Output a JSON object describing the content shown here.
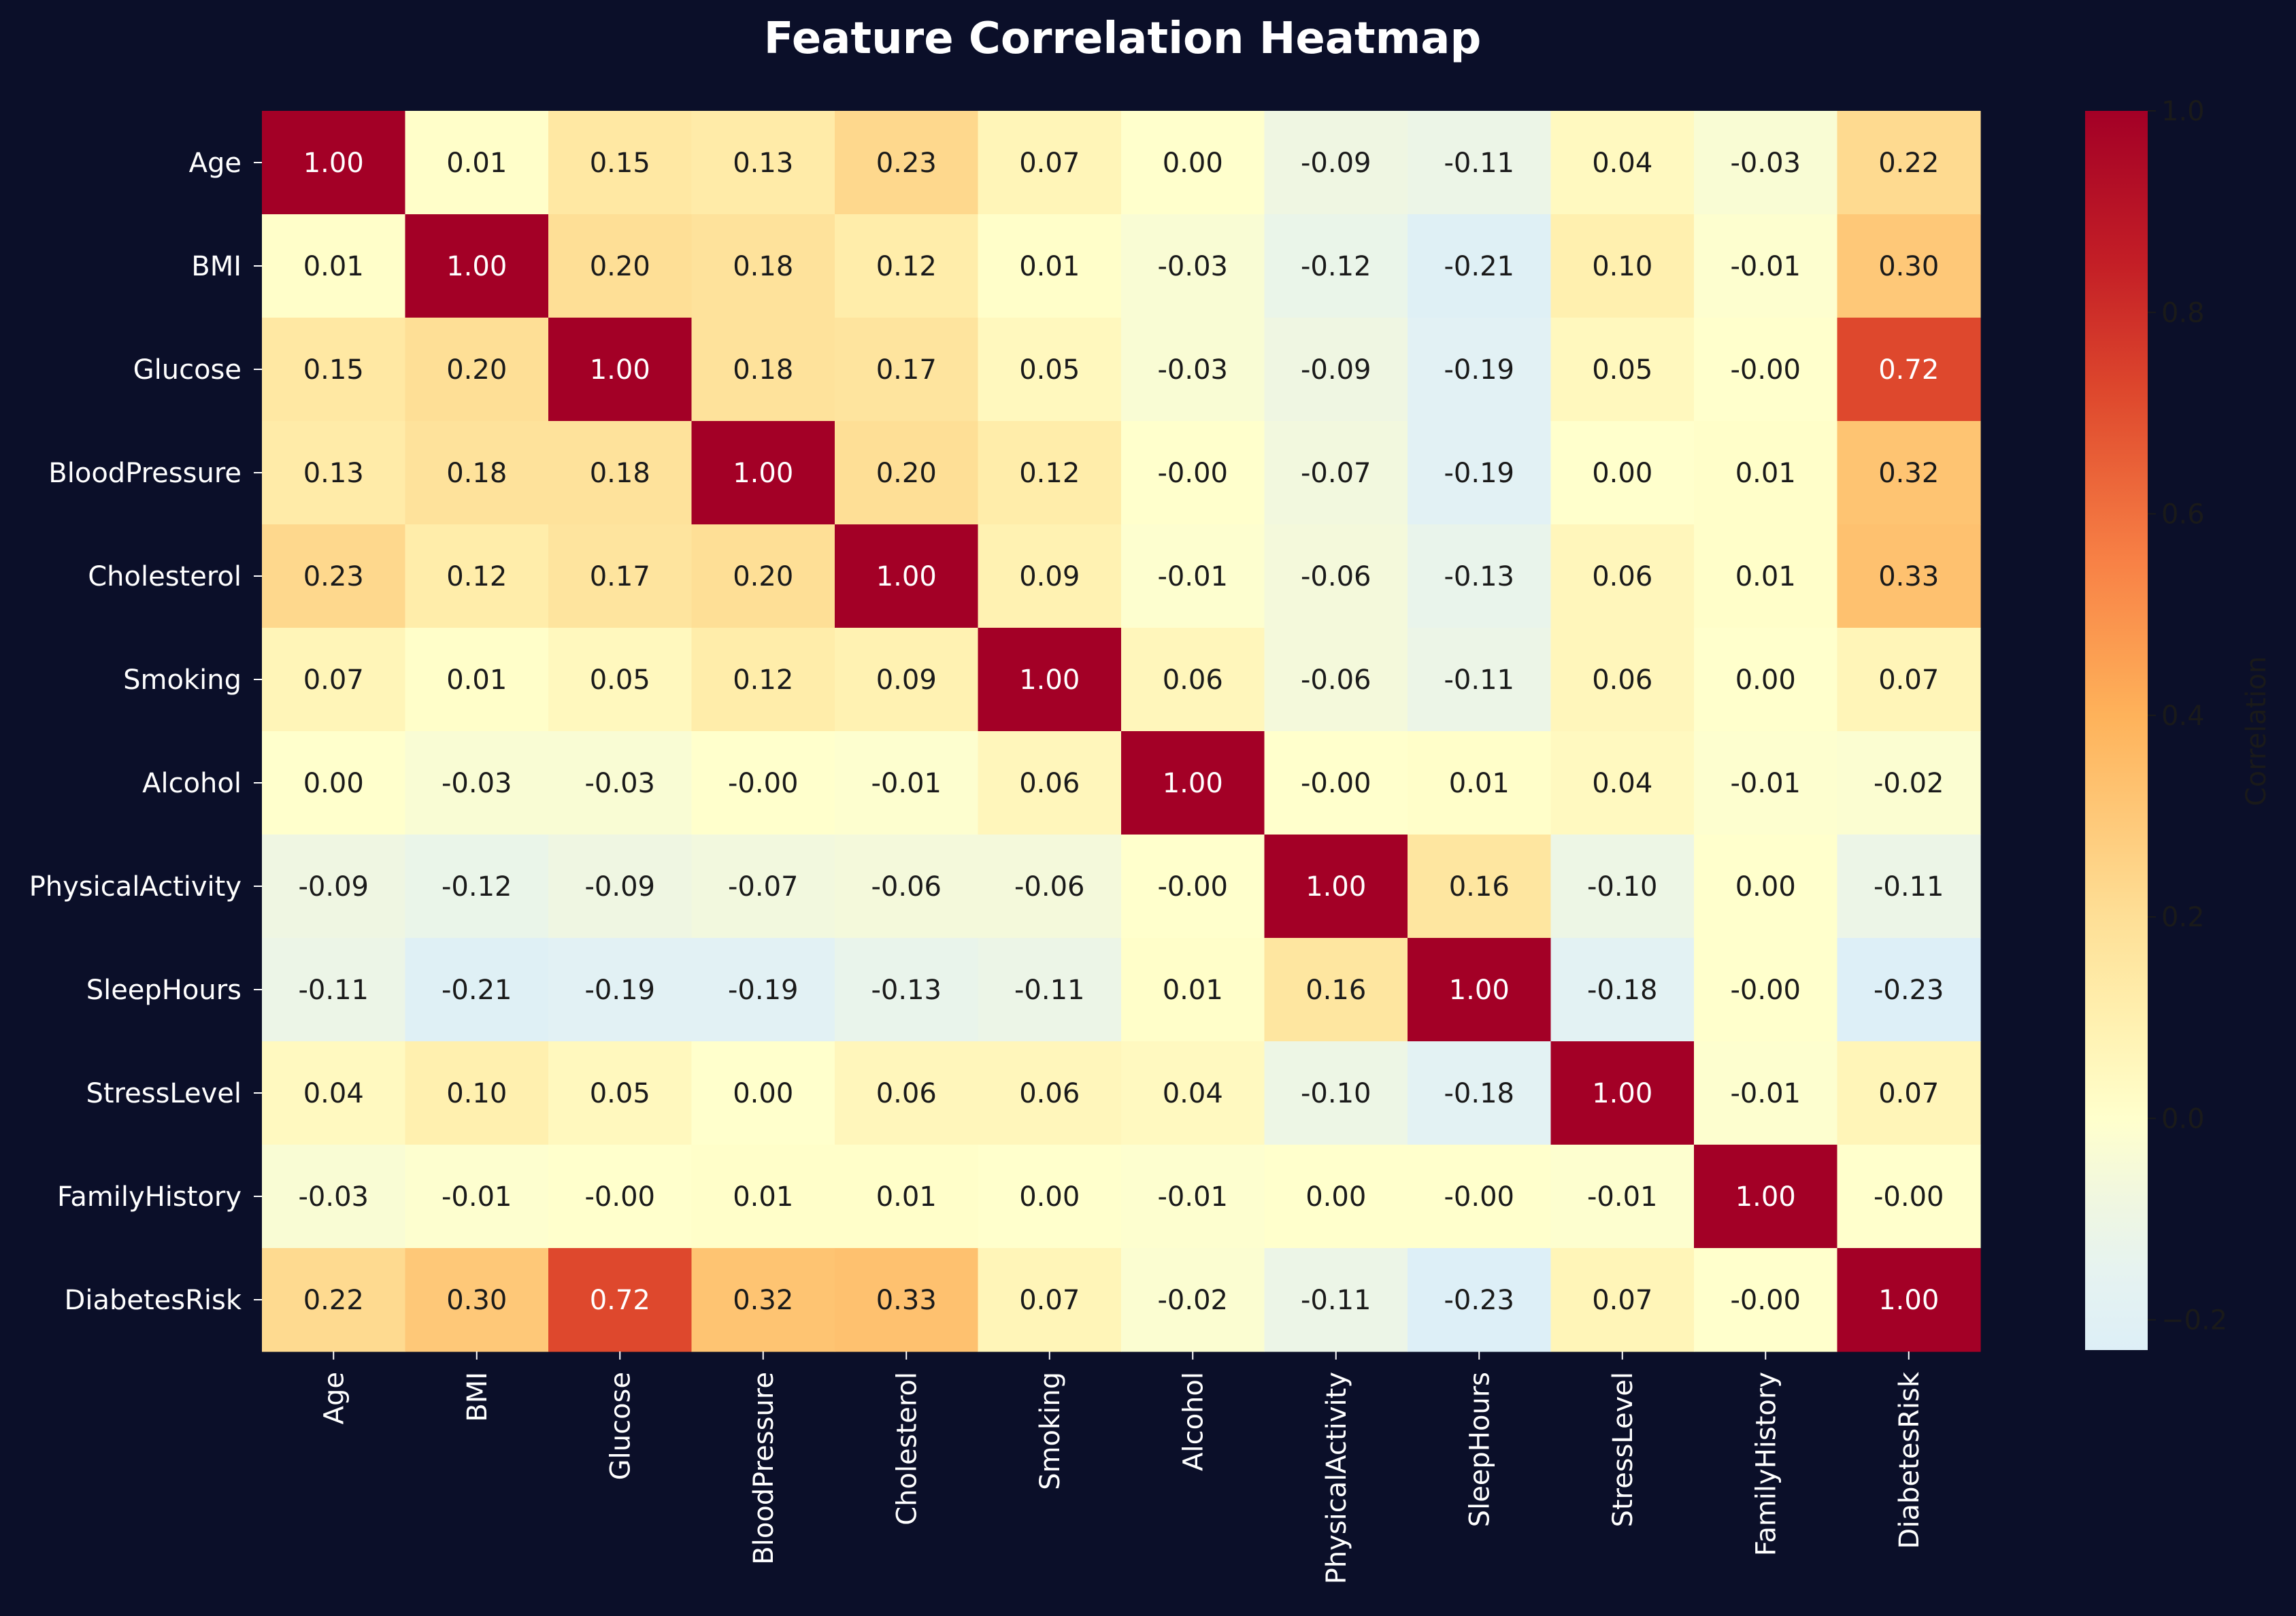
{
  "chart_data": {
    "type": "heatmap",
    "title": "Feature Correlation Heatmap",
    "row_labels": [
      "Age",
      "BMI",
      "Glucose",
      "BloodPressure",
      "Cholesterol",
      "Smoking",
      "Alcohol",
      "PhysicalActivity",
      "SleepHours",
      "StressLevel",
      "FamilyHistory",
      "DiabetesRisk"
    ],
    "column_labels": [
      "Age",
      "BMI",
      "Glucose",
      "BloodPressure",
      "Cholesterol",
      "Smoking",
      "Alcohol",
      "PhysicalActivity",
      "SleepHours",
      "StressLevel",
      "FamilyHistory",
      "DiabetesRisk"
    ],
    "values": [
      [
        "1.00",
        "0.01",
        "0.15",
        "0.13",
        "0.23",
        "0.07",
        "0.00",
        "-0.09",
        "-0.11",
        "0.04",
        "-0.03",
        "0.22"
      ],
      [
        "0.01",
        "1.00",
        "0.20",
        "0.18",
        "0.12",
        "0.01",
        "-0.03",
        "-0.12",
        "-0.21",
        "0.10",
        "-0.01",
        "0.30"
      ],
      [
        "0.15",
        "0.20",
        "1.00",
        "0.18",
        "0.17",
        "0.05",
        "-0.03",
        "-0.09",
        "-0.19",
        "0.05",
        "-0.00",
        "0.72"
      ],
      [
        "0.13",
        "0.18",
        "0.18",
        "1.00",
        "0.20",
        "0.12",
        "-0.00",
        "-0.07",
        "-0.19",
        "0.00",
        "0.01",
        "0.32"
      ],
      [
        "0.23",
        "0.12",
        "0.17",
        "0.20",
        "1.00",
        "0.09",
        "-0.01",
        "-0.06",
        "-0.13",
        "0.06",
        "0.01",
        "0.33"
      ],
      [
        "0.07",
        "0.01",
        "0.05",
        "0.12",
        "0.09",
        "1.00",
        "0.06",
        "-0.06",
        "-0.11",
        "0.06",
        "0.00",
        "0.07"
      ],
      [
        "0.00",
        "-0.03",
        "-0.03",
        "-0.00",
        "-0.01",
        "0.06",
        "1.00",
        "-0.00",
        "0.01",
        "0.04",
        "-0.01",
        "-0.02"
      ],
      [
        "-0.09",
        "-0.12",
        "-0.09",
        "-0.07",
        "-0.06",
        "-0.06",
        "-0.00",
        "1.00",
        "0.16",
        "-0.10",
        "0.00",
        "-0.11"
      ],
      [
        "-0.11",
        "-0.21",
        "-0.19",
        "-0.19",
        "-0.13",
        "-0.11",
        "0.01",
        "0.16",
        "1.00",
        "-0.18",
        "-0.00",
        "-0.23"
      ],
      [
        "0.04",
        "0.10",
        "0.05",
        "0.00",
        "0.06",
        "0.06",
        "0.04",
        "-0.10",
        "-0.18",
        "1.00",
        "-0.01",
        "0.07"
      ],
      [
        "-0.03",
        "-0.01",
        "-0.00",
        "0.01",
        "0.01",
        "0.00",
        "-0.01",
        "0.00",
        "-0.00",
        "-0.01",
        "1.00",
        "-0.00"
      ],
      [
        "0.22",
        "0.30",
        "0.72",
        "0.32",
        "0.33",
        "0.07",
        "-0.02",
        "-0.11",
        "-0.23",
        "0.07",
        "-0.00",
        "1.00"
      ]
    ],
    "colorbar": {
      "label": "Correlation",
      "range": [
        -0.23,
        1.0
      ],
      "ticks": [
        "−0.2",
        "0.0",
        "0.2",
        "0.4",
        "0.6",
        "0.8",
        "1.0"
      ],
      "tick_values": [
        -0.2,
        0.0,
        0.2,
        0.4,
        0.6,
        0.8,
        1.0
      ]
    },
    "colormap": "YlOrRd diverging (light blue at low end)",
    "colors": {
      "background": "#0b0f29",
      "text_light": "#ffffff",
      "text_dark": "#1a1a1a"
    }
  }
}
